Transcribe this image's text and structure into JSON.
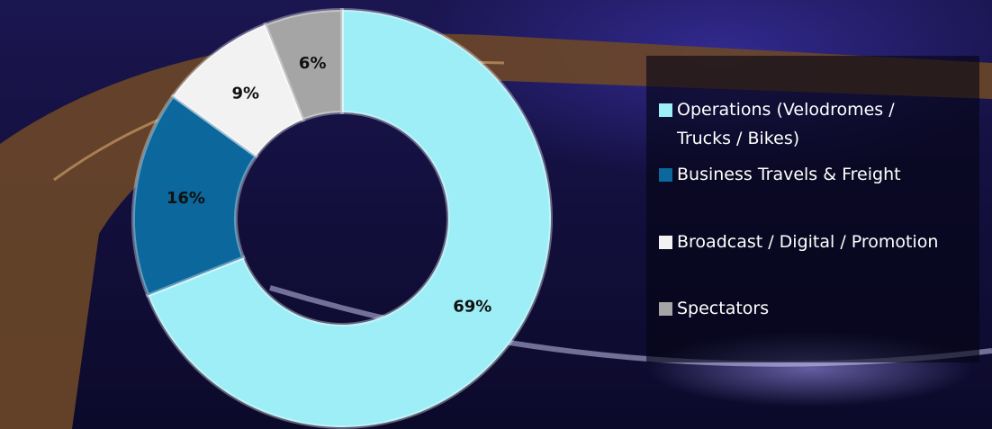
{
  "chart_data": {
    "type": "donut",
    "categories": [
      "Operations (Velodromes / Trucks / Bikes)",
      "Business Travels & Freight",
      "Broadcast / Digital / Promotion",
      "Spectators"
    ],
    "values": [
      69,
      16,
      9,
      6
    ],
    "value_labels": [
      "69%",
      "16%",
      "9%",
      "6%"
    ],
    "colors": [
      "#9deef6",
      "#0b679c",
      "#f2f2f2",
      "#a5a5a5"
    ]
  }
}
